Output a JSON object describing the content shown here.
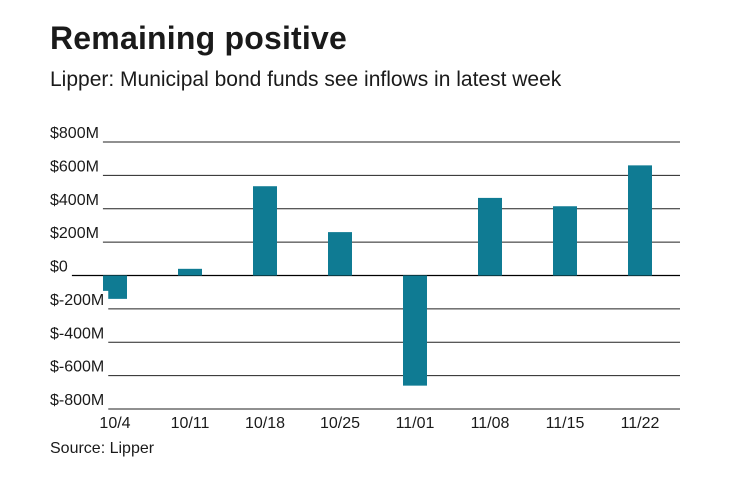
{
  "chart_data": {
    "type": "bar",
    "title": "Remaining positive",
    "subtitle": "Lipper: Municipal bond funds see inflows in latest week",
    "source": "Source: Lipper",
    "categories": [
      "10/4",
      "10/11",
      "10/18",
      "10/25",
      "11/01",
      "11/08",
      "11/15",
      "11/22"
    ],
    "values": [
      -140,
      40,
      535,
      260,
      -660,
      465,
      415,
      660
    ],
    "ylim": [
      -800,
      800
    ],
    "yticks": [
      800,
      600,
      400,
      200,
      0,
      -200,
      -400,
      -600,
      -800
    ],
    "ytick_labels": [
      "$800M",
      "$600M",
      "$400M",
      "$200M",
      "$0",
      "$-200M",
      "$-400M",
      "$-600M",
      "$-800M"
    ],
    "xlabel": "",
    "ylabel": "",
    "grid": true,
    "bar_color": "#0f7b93",
    "grid_color": "#222222"
  }
}
